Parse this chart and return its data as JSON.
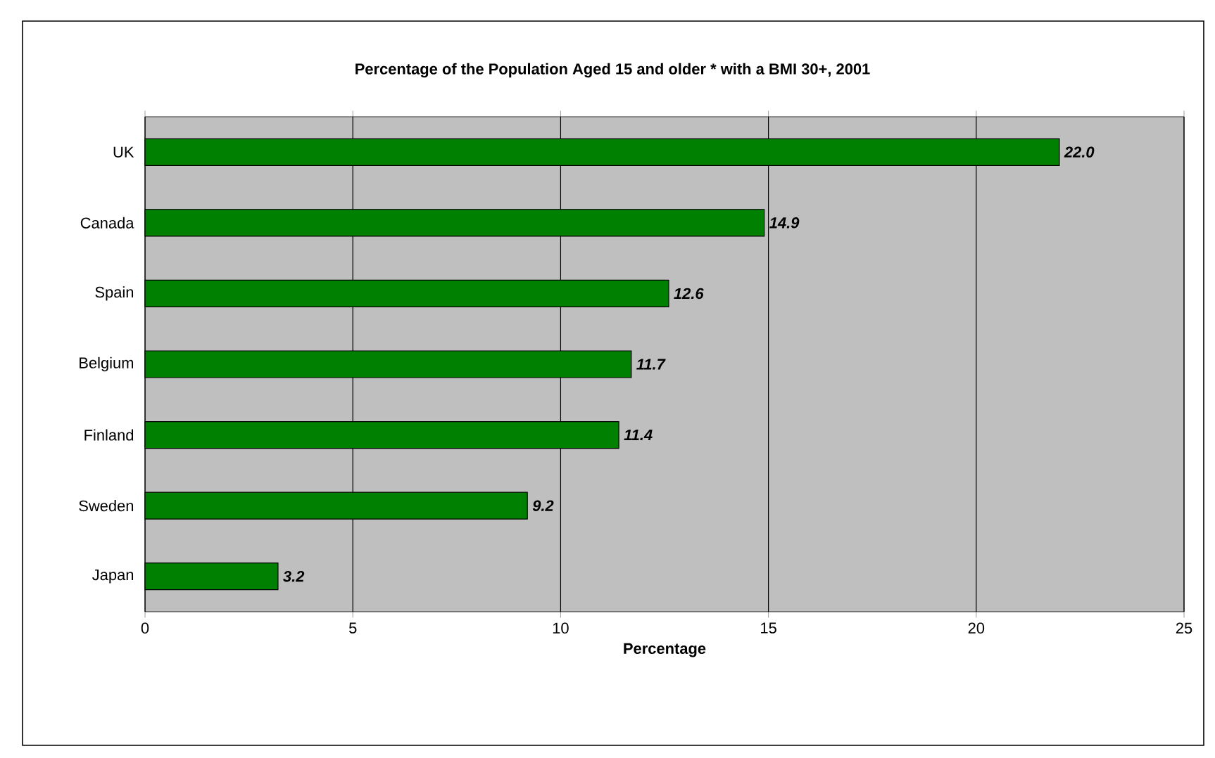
{
  "chart_data": {
    "type": "bar",
    "orientation": "horizontal",
    "title": "Percentage of the Population Aged 15 and older *  with a BMI 30+, 2001",
    "xlabel": "Percentage",
    "categories": [
      "UK",
      "Canada",
      "Spain",
      "Belgium",
      "Finland",
      "Sweden",
      "Japan"
    ],
    "values": [
      22.0,
      14.9,
      12.6,
      11.7,
      11.4,
      9.2,
      3.2
    ],
    "value_labels": [
      "22.0",
      "14.9",
      "12.6",
      "11.7",
      "11.4",
      "9.2",
      "3.2"
    ],
    "color": "#008000",
    "xlim": [
      0,
      25
    ],
    "xticks": [
      0,
      5,
      10,
      15,
      20,
      25
    ],
    "grid": "x"
  }
}
